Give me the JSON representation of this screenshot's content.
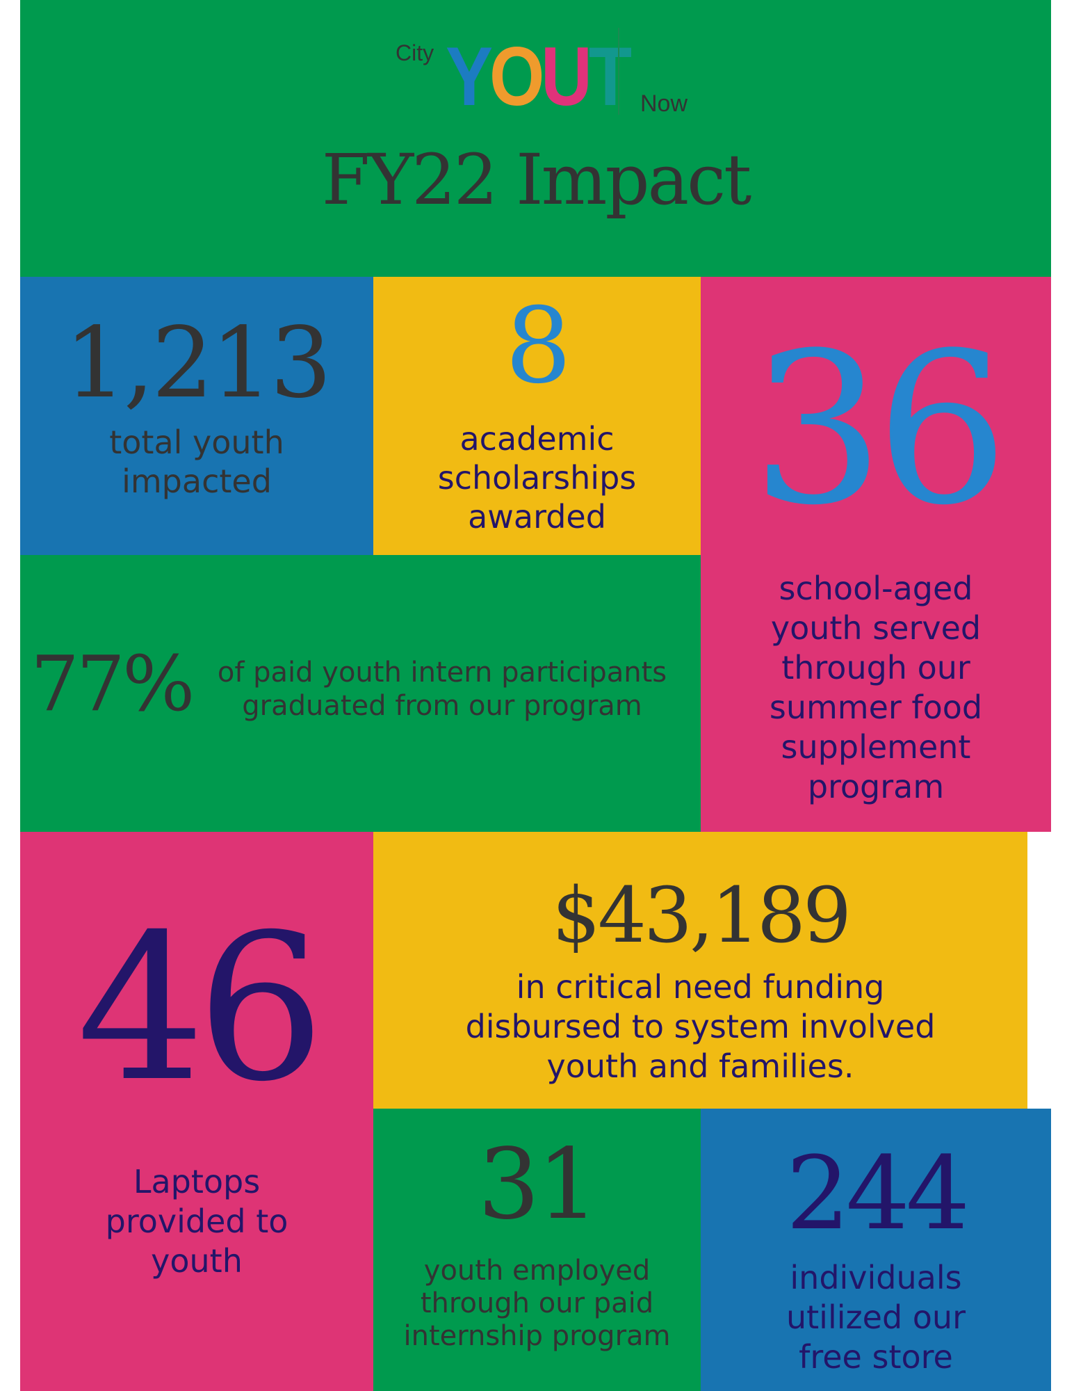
{
  "header": {
    "logo_city": "City",
    "logo_letters": [
      "Y",
      "O",
      "U",
      "T"
    ],
    "logo_letter_colors": [
      "#1c7cc2",
      "#ef9b2d",
      "#e0327a",
      "#12988e"
    ],
    "logo_now": "Now",
    "title": "FY22 Impact"
  },
  "stats": {
    "youth_impacted": {
      "value": "1,213",
      "label_lines": [
        "total youth",
        "impacted"
      ]
    },
    "scholarships": {
      "value": "8",
      "label_lines": [
        "academic",
        "scholarships",
        "awarded"
      ]
    },
    "school_aged": {
      "value": "36",
      "label_lines": [
        "school-aged",
        "youth served",
        "through our",
        "summer food",
        "supplement",
        "program"
      ]
    },
    "interns_graduated": {
      "value": "77%",
      "label_lines": [
        "of paid youth intern participants",
        "graduated from our program"
      ]
    },
    "funding": {
      "value": "$43,189",
      "label_lines": [
        "in critical need funding",
        "disbursed to system involved",
        "youth and families."
      ]
    },
    "laptops": {
      "value": "46",
      "label_lines": [
        "Laptops",
        "provided to",
        "youth"
      ]
    },
    "employed": {
      "value": "31",
      "label_lines": [
        "youth employed",
        "through our paid",
        "internship program"
      ]
    },
    "free_store": {
      "value": "244",
      "label_lines": [
        "individuals",
        "utilized our",
        "free store"
      ]
    }
  },
  "colors": {
    "green": "#009a4e",
    "blue": "#1874b1",
    "yellow": "#f1bb13",
    "pink": "#de3475",
    "dark_text": "#333333",
    "navy_text": "#231569",
    "blue_text": "#2686cf"
  }
}
